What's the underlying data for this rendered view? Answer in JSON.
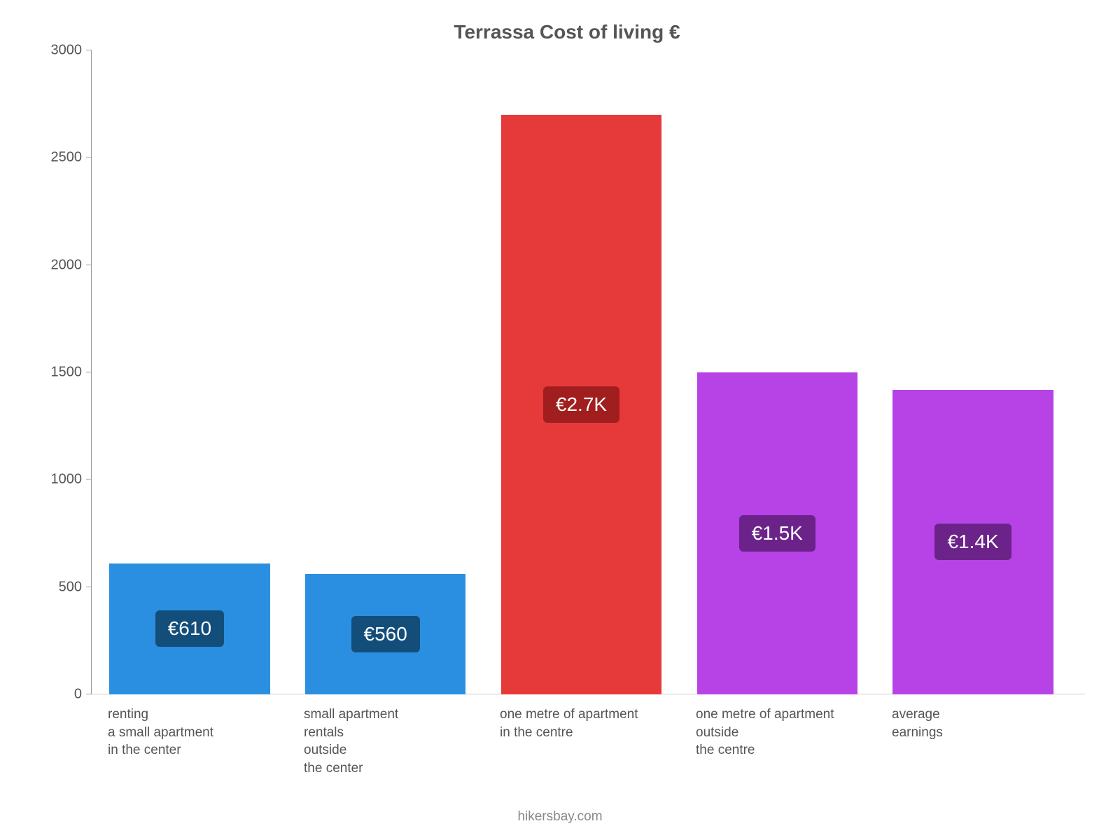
{
  "chart": {
    "type": "bar",
    "title": "Terrassa Cost of living €",
    "title_fontsize": 28,
    "title_color": "#555555",
    "background_color": "#ffffff",
    "ylim": [
      0,
      3000
    ],
    "ytick_step": 500,
    "yticks": [
      0,
      500,
      1000,
      1500,
      2000,
      2500,
      3000
    ],
    "axis_color": "#999999",
    "tick_label_color": "#555555",
    "tick_label_fontsize": 20,
    "xlabel_fontsize": 19,
    "bar_width_pct": 82,
    "bars": [
      {
        "category_lines": [
          "renting",
          "a small apartment",
          "in the center"
        ],
        "value": 610,
        "display_label": "€610",
        "bar_color": "#2a8fe0",
        "label_bg": "#134e7a",
        "label_text_color": "#ffffff"
      },
      {
        "category_lines": [
          "small apartment",
          "rentals",
          "outside",
          "the center"
        ],
        "value": 560,
        "display_label": "€560",
        "bar_color": "#2a8fe0",
        "label_bg": "#134e7a",
        "label_text_color": "#ffffff"
      },
      {
        "category_lines": [
          "one metre of apartment",
          "in the centre"
        ],
        "value": 2700,
        "display_label": "€2.7K",
        "bar_color": "#e63a3a",
        "label_bg": "#a11e1e",
        "label_text_color": "#ffffff"
      },
      {
        "category_lines": [
          "one metre of apartment",
          "outside",
          "the centre"
        ],
        "value": 1500,
        "display_label": "€1.5K",
        "bar_color": "#b742e6",
        "label_bg": "#6b2389",
        "label_text_color": "#ffffff"
      },
      {
        "category_lines": [
          "average",
          "earnings"
        ],
        "value": 1420,
        "display_label": "€1.4K",
        "bar_color": "#b742e6",
        "label_bg": "#6b2389",
        "label_text_color": "#ffffff"
      }
    ],
    "attribution": "hikersbay.com",
    "attribution_color": "#888888",
    "attribution_fontsize": 19
  }
}
